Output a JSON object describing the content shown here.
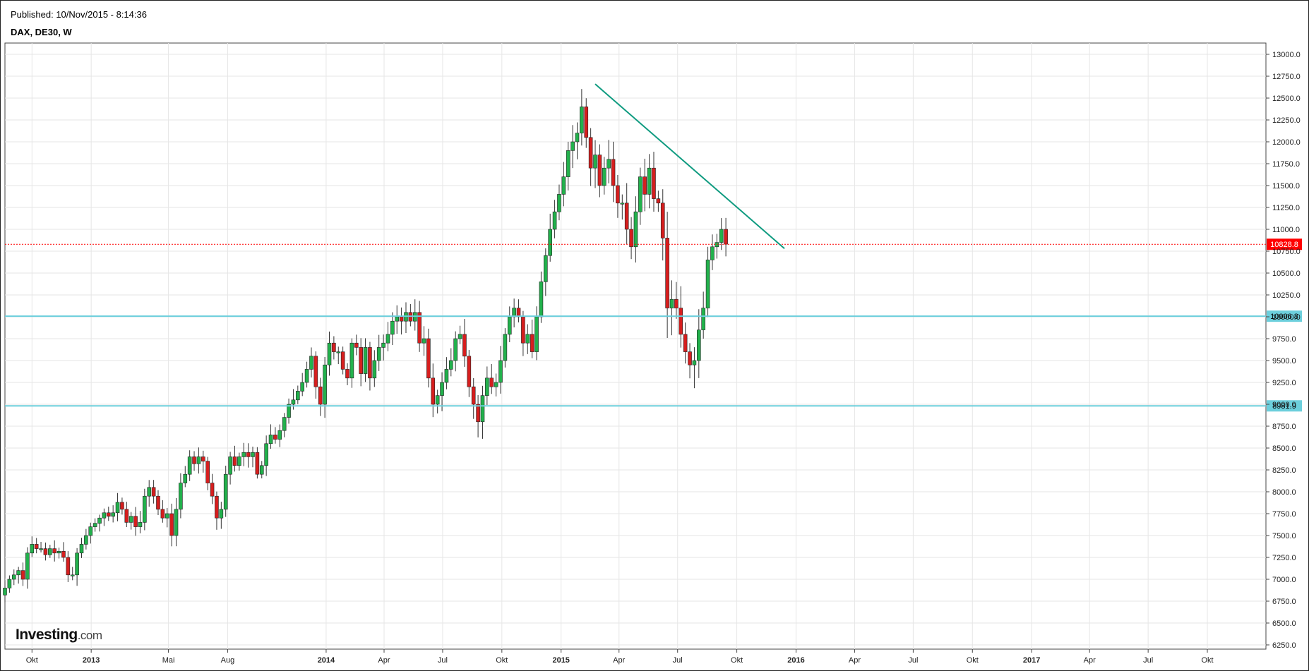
{
  "header": {
    "published": "Published: 10/Nov/2015 - 8:14:36",
    "symbol": "DAX, DE30, W"
  },
  "logo": {
    "brand": "Investing",
    "domain": ".com"
  },
  "colors": {
    "up": "#22b14c",
    "down": "#d61e1e",
    "grid": "#e6e6e6",
    "support": "#6ccfdc",
    "trendline": "#0f9b80",
    "current": "#ff0000"
  },
  "chart_data": {
    "type": "candlestick",
    "title": "",
    "xlabel": "",
    "ylabel": "",
    "interval": "weekly",
    "ylim": [
      6200,
      13200
    ],
    "y_ticks": [
      6250,
      6500,
      6750,
      7000,
      7250,
      7500,
      7750,
      8000,
      8250,
      8500,
      8750,
      9000,
      9250,
      9500,
      9750,
      10000,
      10250,
      10500,
      10750,
      11000,
      11250,
      11500,
      11750,
      12000,
      12250,
      12500,
      12750,
      13000
    ],
    "y_tick_labels": [
      "6250.0",
      "6500.0",
      "6750.0",
      "7000.0",
      "7250.0",
      "7500.0",
      "7750.0",
      "8000.0",
      "8250.0",
      "8500.0",
      "8750.0",
      "9000.0",
      "9250.0",
      "9500.0",
      "9750.0",
      "10000.0",
      "10250.0",
      "10500.0",
      "10750.0",
      "11000.0",
      "11250.0",
      "11500.0",
      "11750.0",
      "12000.0",
      "12250.0",
      "12500.0",
      "12750.0",
      "13000.0"
    ],
    "x_range": [
      "2012-08-20",
      "2017-12-31"
    ],
    "x_ticks": [
      {
        "date": "2012-10-01",
        "label": "Okt",
        "year": false
      },
      {
        "date": "2013-01-01",
        "label": "2013",
        "year": true
      },
      {
        "date": "2013-05-01",
        "label": "Mai",
        "year": false
      },
      {
        "date": "2013-08-01",
        "label": "Aug",
        "year": false
      },
      {
        "date": "2014-01-01",
        "label": "2014",
        "year": true
      },
      {
        "date": "2014-04-01",
        "label": "Apr",
        "year": false
      },
      {
        "date": "2014-07-01",
        "label": "Jul",
        "year": false
      },
      {
        "date": "2014-10-01",
        "label": "Okt",
        "year": false
      },
      {
        "date": "2015-01-01",
        "label": "2015",
        "year": true
      },
      {
        "date": "2015-04-01",
        "label": "Apr",
        "year": false
      },
      {
        "date": "2015-07-01",
        "label": "Jul",
        "year": false
      },
      {
        "date": "2015-10-01",
        "label": "Okt",
        "year": false
      },
      {
        "date": "2016-01-01",
        "label": "2016",
        "year": true
      },
      {
        "date": "2016-04-01",
        "label": "Apr",
        "year": false
      },
      {
        "date": "2016-07-01",
        "label": "Jul",
        "year": false
      },
      {
        "date": "2016-10-01",
        "label": "Okt",
        "year": false
      },
      {
        "date": "2017-01-01",
        "label": "2017",
        "year": true
      },
      {
        "date": "2017-04-01",
        "label": "Apr",
        "year": false
      },
      {
        "date": "2017-07-01",
        "label": "Jul",
        "year": false
      },
      {
        "date": "2017-10-01",
        "label": "Okt",
        "year": false
      }
    ],
    "first_week": "2012-08-20",
    "closes": [
      6900,
      7000,
      7050,
      7100,
      7000,
      7300,
      7400,
      7350,
      7350,
      7280,
      7350,
      7300,
      7320,
      7250,
      7050,
      7050,
      7300,
      7400,
      7500,
      7600,
      7640,
      7700,
      7760,
      7720,
      7760,
      7880,
      7800,
      7650,
      7720,
      7600,
      7650,
      7950,
      8050,
      7950,
      7800,
      7700,
      7750,
      7500,
      7800,
      8100,
      8200,
      8400,
      8320,
      8400,
      8350,
      8100,
      7950,
      7700,
      7800,
      8200,
      8400,
      8300,
      8400,
      8450,
      8400,
      8450,
      8200,
      8300,
      8550,
      8650,
      8600,
      8700,
      8850,
      9000,
      9050,
      9150,
      9250,
      9400,
      9550,
      9200,
      9000,
      9450,
      9700,
      9600,
      9600,
      9400,
      9300,
      9700,
      9650,
      9350,
      9650,
      9300,
      9500,
      9650,
      9700,
      9800,
      9950,
      10000,
      9950,
      10050,
      9950,
      10050,
      9700,
      9750,
      9300,
      9000,
      9100,
      9250,
      9400,
      9500,
      9750,
      9800,
      9550,
      9200,
      9000,
      8800,
      9100,
      9300,
      9200,
      9250,
      9500,
      9800,
      10000,
      10100,
      10000,
      9700,
      9800,
      9600,
      10000,
      10400,
      10700,
      11000,
      11200,
      11400,
      11600,
      11900,
      12000,
      12100,
      12400,
      12050,
      11700,
      11850,
      11500,
      11700,
      11800,
      11500,
      11300,
      11300,
      11000,
      10800,
      11200,
      11600,
      11400,
      11700,
      11350,
      11300,
      10900,
      10100,
      10200,
      10100,
      9800,
      9600,
      9450,
      9500,
      9850,
      10100,
      10650,
      10800,
      10850,
      11000,
      10830
    ],
    "volatility": [
      130,
      120,
      110,
      120,
      140,
      140,
      130,
      120,
      110,
      110,
      110,
      110,
      110,
      120,
      130,
      130,
      140,
      130,
      120,
      120,
      110,
      110,
      110,
      120,
      130,
      140,
      140,
      150,
      150,
      150,
      150,
      150,
      150,
      150,
      150,
      140,
      140,
      140,
      150,
      150,
      150,
      150,
      150,
      150,
      150,
      160,
      160,
      150,
      150,
      150,
      150,
      150,
      150,
      150,
      150,
      150,
      150,
      150,
      150,
      150,
      150,
      150,
      150,
      150,
      160,
      160,
      160,
      160,
      170,
      180,
      180,
      180,
      180,
      170,
      170,
      170,
      170,
      170,
      170,
      170,
      170,
      170,
      170,
      170,
      170,
      170,
      170,
      170,
      170,
      170,
      170,
      170,
      190,
      190,
      190,
      200,
      200,
      200,
      200,
      200,
      200,
      200,
      200,
      220,
      240,
      240,
      230,
      200,
      200,
      200,
      200,
      200,
      200,
      200,
      200,
      200,
      200,
      200,
      220,
      220,
      220,
      220,
      220,
      220,
      230,
      230,
      230,
      230,
      260,
      280,
      280,
      260,
      260,
      260,
      260,
      260,
      260,
      260,
      260,
      280,
      280,
      280,
      260,
      260,
      280,
      260,
      300,
      400,
      380,
      350,
      300,
      300,
      300,
      300,
      300,
      300,
      260,
      240,
      220,
      200,
      200
    ],
    "last_close": 10828.8,
    "levels": [
      {
        "value": 10006.8,
        "label": "10006.8",
        "kind": "support"
      },
      {
        "value": 8981.9,
        "label": "8981.9",
        "kind": "support"
      }
    ],
    "current_price": {
      "value": 10828.8,
      "label": "10828.8"
    },
    "trendline": {
      "start": {
        "date": "2015-02-23",
        "value": 12660
      },
      "end": {
        "date": "2015-12-14",
        "value": 10780
      }
    }
  }
}
